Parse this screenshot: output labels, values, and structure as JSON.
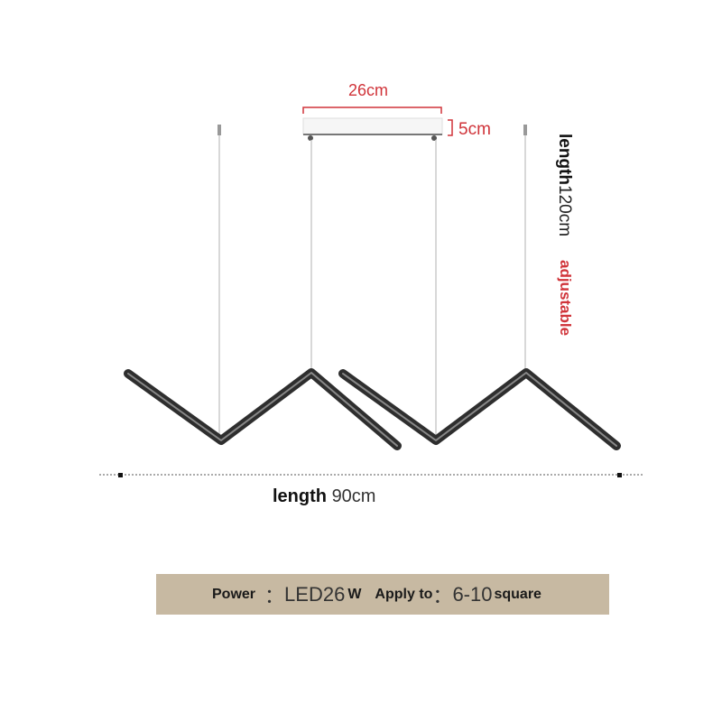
{
  "dimensions": {
    "canopy_width": "26cm",
    "canopy_height": "5cm",
    "cable_length_label": "length",
    "cable_length_value": "120cm",
    "cable_adjustable": "adjustable",
    "fixture_length_label": "length",
    "fixture_length_value": "90cm"
  },
  "specs": {
    "power_label": "Power",
    "power_sep": "：",
    "power_value": "LED26",
    "power_unit": "W",
    "apply_label": "Apply to",
    "apply_sep": "：",
    "apply_value": "6-10",
    "apply_unit": "square"
  },
  "colors": {
    "accent": "#d0343a",
    "spec_bar": "#c7b9a2",
    "fixture": "#2e2e2e"
  }
}
